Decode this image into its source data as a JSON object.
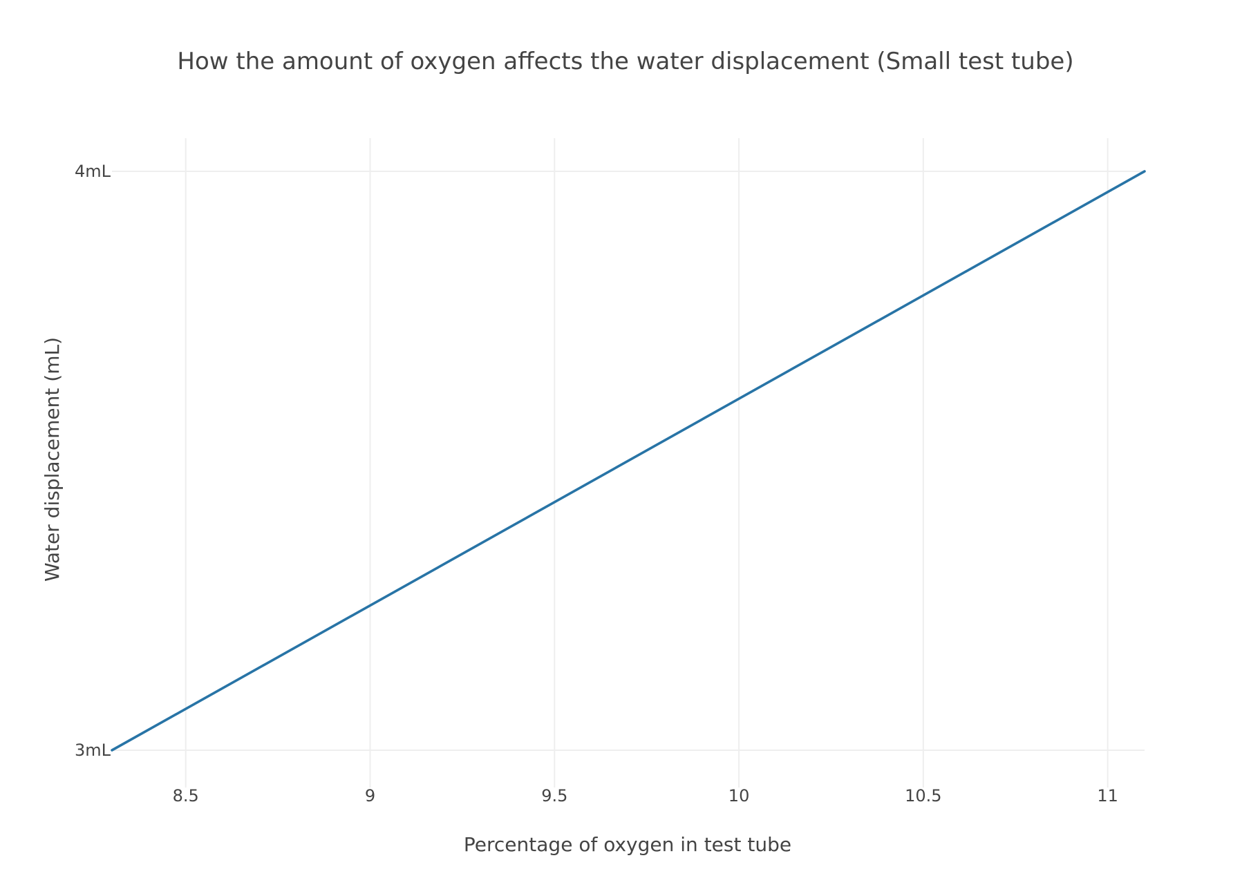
{
  "chart_data": {
    "type": "line",
    "title": "How the amount of oxygen affects the water displacement (Small test tube)",
    "xlabel": "Percentage of oxygen in test tube",
    "ylabel": "Water displacement (mL)",
    "xlim": [
      8.3,
      11.1
    ],
    "ylim": [
      3,
      4
    ],
    "x_ticks": [
      8.5,
      9,
      9.5,
      10,
      10.5,
      11
    ],
    "x_tick_labels": [
      "8.5",
      "9",
      "9.5",
      "10",
      "10.5",
      "11"
    ],
    "y_ticks": [
      3,
      4
    ],
    "y_tick_labels": [
      "3mL",
      "4mL"
    ],
    "grid": true,
    "series": [
      {
        "x": [
          8.3,
          11.1
        ],
        "y": [
          3,
          4
        ],
        "color": "#2874a6"
      }
    ]
  }
}
